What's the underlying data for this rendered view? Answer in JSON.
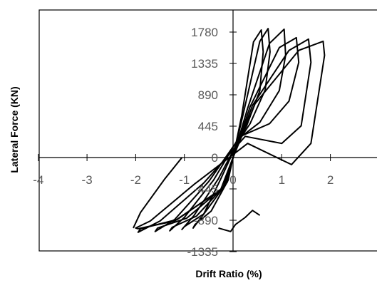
{
  "chart_data": {
    "type": "line",
    "xlabel": "Drift Ratio (%)",
    "ylabel": "Lateral Force (KN)",
    "xlim": [
      -4,
      3
    ],
    "ylim": [
      -1335,
      2000
    ],
    "x_ticks": [
      -4,
      -3,
      -2,
      -1,
      0,
      1,
      2
    ],
    "y_ticks": [
      -1335,
      -890,
      -445,
      0,
      445,
      890,
      1335,
      1780
    ],
    "grid": false,
    "legend": "none",
    "colors": {
      "line": "#000000",
      "tick_text": "#595959"
    },
    "series": [
      {
        "loops": [
          [
            0.0,
            0.0
          ],
          [
            0.18,
            600
          ],
          [
            0.42,
            1640
          ],
          [
            0.58,
            1810
          ],
          [
            0.62,
            1500
          ],
          [
            0.55,
            950
          ],
          [
            0.28,
            450
          ],
          [
            0.05,
            150
          ],
          [
            -0.25,
            -300
          ],
          [
            -0.6,
            -800
          ],
          [
            -0.82,
            -1000
          ],
          [
            -0.78,
            -950
          ],
          [
            -0.45,
            -760
          ],
          [
            -0.1,
            -320
          ],
          [
            0.0,
            0.0
          ]
        ]
      },
      {
        "loops": [
          [
            0.0,
            0.0
          ],
          [
            0.22,
            650
          ],
          [
            0.55,
            1650
          ],
          [
            0.72,
            1830
          ],
          [
            0.76,
            1500
          ],
          [
            0.66,
            960
          ],
          [
            0.35,
            480
          ],
          [
            0.08,
            200
          ],
          [
            -0.3,
            -300
          ],
          [
            -0.8,
            -820
          ],
          [
            -1.05,
            -1020
          ],
          [
            -1.0,
            -980
          ],
          [
            -0.6,
            -800
          ],
          [
            -0.12,
            -350
          ],
          [
            0.0,
            0.0
          ]
        ]
      },
      {
        "loops": [
          [
            0.0,
            0.0
          ],
          [
            0.3,
            700
          ],
          [
            0.75,
            1620
          ],
          [
            1.05,
            1820
          ],
          [
            1.08,
            1450
          ],
          [
            0.95,
            950
          ],
          [
            0.55,
            500
          ],
          [
            0.1,
            260
          ],
          [
            -0.4,
            -320
          ],
          [
            -1.0,
            -850
          ],
          [
            -1.3,
            -1040
          ],
          [
            -1.25,
            -990
          ],
          [
            -0.75,
            -830
          ],
          [
            -0.15,
            -380
          ],
          [
            0.0,
            0.0
          ]
        ]
      },
      {
        "loops": [
          [
            0.0,
            0.0
          ],
          [
            0.35,
            720
          ],
          [
            0.95,
            1560
          ],
          [
            1.3,
            1700
          ],
          [
            1.35,
            1350
          ],
          [
            1.15,
            800
          ],
          [
            0.75,
            480
          ],
          [
            0.15,
            300
          ],
          [
            -0.5,
            -340
          ],
          [
            -1.2,
            -880
          ],
          [
            -1.6,
            -1050
          ],
          [
            -1.55,
            -1000
          ],
          [
            -0.95,
            -860
          ],
          [
            -0.2,
            -420
          ],
          [
            0.0,
            0.0
          ]
        ]
      },
      {
        "loops": [
          [
            0.0,
            0.0
          ],
          [
            0.4,
            740
          ],
          [
            1.15,
            1520
          ],
          [
            1.55,
            1680
          ],
          [
            1.6,
            1350
          ],
          [
            1.4,
            450
          ],
          [
            1.0,
            200
          ],
          [
            0.25,
            300
          ],
          [
            -0.6,
            -360
          ],
          [
            -1.5,
            -900
          ],
          [
            -1.95,
            -1060
          ],
          [
            -1.9,
            -1010
          ],
          [
            -1.15,
            -880
          ],
          [
            -0.25,
            -450
          ],
          [
            0.0,
            0.0
          ]
        ]
      },
      {
        "loops": [
          [
            0.0,
            0.0
          ],
          [
            0.45,
            760
          ],
          [
            1.35,
            1520
          ],
          [
            1.85,
            1650
          ],
          [
            1.88,
            1450
          ],
          [
            1.6,
            200
          ],
          [
            1.2,
            -100
          ],
          [
            0.3,
            200
          ],
          [
            -0.8,
            -380
          ],
          [
            -1.7,
            -900
          ],
          [
            -2.0,
            -1000
          ],
          [
            -1.95,
            -1010
          ],
          [
            -1.2,
            -900
          ],
          [
            -0.2,
            -430
          ],
          [
            0.0,
            0.0
          ]
        ]
      },
      {
        "loops": [
          [
            -1.05,
            0.0
          ],
          [
            -1.4,
            -300
          ],
          [
            -1.9,
            -780
          ],
          [
            -2.05,
            -1000
          ]
        ]
      },
      {
        "loops": [
          [
            -0.3,
            -1000
          ],
          [
            -0.05,
            -1050
          ],
          [
            0.05,
            -950
          ],
          [
            0.25,
            -850
          ],
          [
            0.4,
            -750
          ],
          [
            0.55,
            -820
          ]
        ]
      }
    ]
  }
}
